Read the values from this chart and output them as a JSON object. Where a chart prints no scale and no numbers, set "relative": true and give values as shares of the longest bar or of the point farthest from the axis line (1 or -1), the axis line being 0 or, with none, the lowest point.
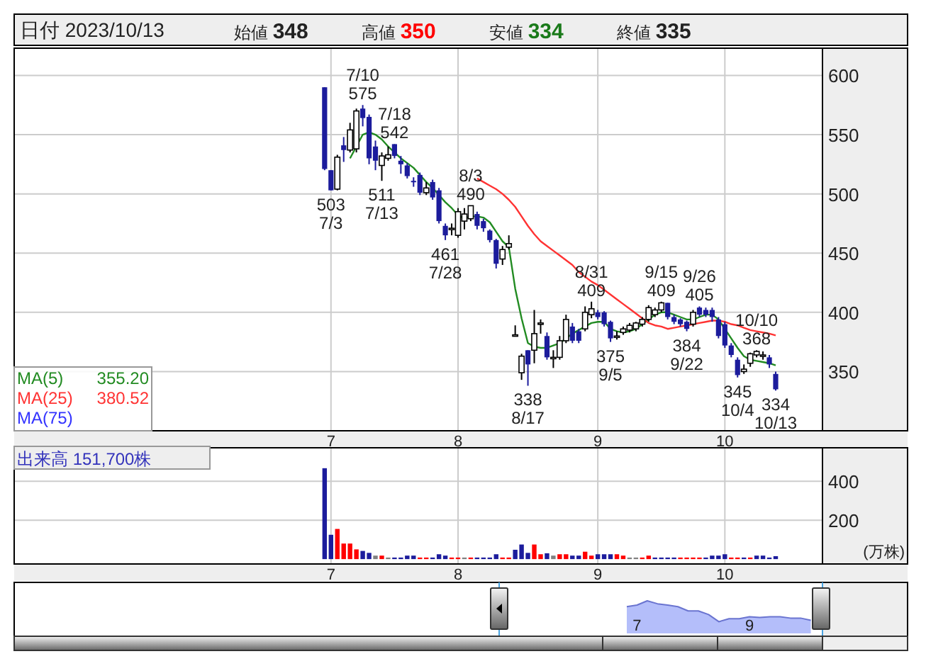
{
  "chart_data": [
    {
      "type": "candlestick",
      "annotations": [
        "日付 2023/10/13",
        "始値 348",
        "高値 350",
        "安値 334",
        "終値 335",
        "355.20",
        "380.52",
        {
          "text": "503\n7/3",
          "y": 503
        },
        {
          "text": "7/10\n575",
          "y": 575
        },
        {
          "text": "511\n7/13",
          "y": 511
        },
        {
          "text": "7/18\n542",
          "y": 542
        },
        {
          "text": "461\n7/28",
          "y": 461
        },
        {
          "text": "8/3\n490",
          "y": 490
        },
        {
          "text": "338\n8/17",
          "y": 338
        },
        {
          "text": "8/31\n409",
          "y": 409
        },
        {
          "text": "375\n9/5",
          "y": 375
        },
        {
          "text": "9/15\n409",
          "y": 409
        },
        {
          "text": "384\n9/22",
          "y": 384
        },
        {
          "text": "9/26\n405",
          "y": 405
        },
        {
          "text": "345\n10/4",
          "y": 345
        },
        {
          "text": "10/10\n368",
          "y": 368
        },
        {
          "text": "334\n10/13",
          "y": 334
        }
      ],
      "categories": [
        null,
        "7",
        null,
        null,
        null,
        null,
        null,
        null,
        null,
        null,
        null,
        null,
        null,
        null,
        null,
        null,
        null,
        null,
        null,
        null,
        null,
        "8",
        null,
        null,
        null,
        null,
        null,
        null,
        null,
        null,
        null,
        null,
        null,
        null,
        null,
        null,
        null,
        null,
        null,
        null,
        null,
        null,
        null,
        "9",
        null,
        null,
        null,
        null,
        null,
        null,
        null,
        null,
        null,
        null,
        null,
        null,
        null,
        null,
        null,
        null,
        null,
        null,
        null,
        "10",
        null,
        null,
        null,
        null,
        null,
        null,
        null,
        null
      ],
      "ohlc": [
        [
          590,
          590,
          520,
          521
        ],
        [
          520,
          520,
          503,
          503
        ],
        [
          504,
          533,
          503,
          531
        ],
        [
          541,
          548,
          527,
          537
        ],
        [
          537,
          560,
          535,
          554
        ],
        [
          538,
          572,
          535,
          570
        ],
        [
          572,
          575,
          557,
          564
        ],
        [
          565,
          567,
          525,
          530
        ],
        [
          540,
          545,
          520,
          528
        ],
        [
          524,
          535,
          511,
          532
        ],
        [
          530,
          540,
          528,
          533
        ],
        [
          542,
          542,
          530,
          532
        ],
        [
          528,
          532,
          517,
          525
        ],
        [
          524,
          526,
          513,
          515
        ],
        [
          511,
          514,
          506,
          510
        ],
        [
          516,
          518,
          499,
          501
        ],
        [
          501,
          510,
          499,
          505
        ],
        [
          510,
          512,
          495,
          497
        ],
        [
          503,
          505,
          475,
          477
        ],
        [
          473,
          475,
          461,
          465
        ],
        [
          471,
          475,
          465,
          471
        ],
        [
          465,
          488,
          463,
          485
        ],
        [
          477,
          488,
          470,
          483
        ],
        [
          479,
          490,
          477,
          490
        ],
        [
          483,
          485,
          470,
          473
        ],
        [
          477,
          479,
          468,
          471
        ],
        [
          469,
          470,
          459,
          461
        ],
        [
          461,
          462,
          437,
          441
        ],
        [
          445,
          456,
          440,
          453
        ],
        [
          455,
          465,
          453,
          458
        ],
        [
          381,
          389,
          381,
          381
        ],
        [
          349,
          365,
          343,
          363
        ],
        [
          368,
          368,
          338,
          356
        ],
        [
          368,
          402,
          357,
          382
        ],
        [
          391,
          394,
          382,
          391
        ],
        [
          380,
          383,
          360,
          362
        ],
        [
          362,
          368,
          353,
          362
        ],
        [
          362,
          380,
          360,
          376
        ],
        [
          376,
          398,
          374,
          394
        ],
        [
          388,
          391,
          374,
          376
        ],
        [
          384,
          386,
          374,
          376
        ],
        [
          386,
          405,
          384,
          400
        ],
        [
          398,
          409,
          395,
          403
        ],
        [
          400,
          402,
          394,
          396
        ],
        [
          400,
          401,
          388,
          390
        ],
        [
          392,
          393,
          375,
          378
        ],
        [
          380,
          384,
          377,
          380
        ],
        [
          383,
          388,
          381,
          386
        ],
        [
          385,
          391,
          383,
          389
        ],
        [
          386,
          392,
          384,
          391
        ],
        [
          390,
          396,
          388,
          394
        ],
        [
          394,
          406,
          392,
          404
        ],
        [
          398,
          404,
          396,
          402
        ],
        [
          402,
          409,
          400,
          408
        ],
        [
          408,
          408,
          394,
          396
        ],
        [
          396,
          398,
          390,
          392
        ],
        [
          394,
          395,
          388,
          390
        ],
        [
          392,
          393,
          384,
          386
        ],
        [
          390,
          402,
          388,
          400
        ],
        [
          404,
          405,
          396,
          398
        ],
        [
          402,
          404,
          396,
          398
        ],
        [
          402,
          404,
          392,
          396
        ],
        [
          394,
          396,
          378,
          380
        ],
        [
          390,
          392,
          370,
          372
        ],
        [
          372,
          374,
          362,
          364
        ],
        [
          360,
          362,
          345,
          347
        ],
        [
          350,
          356,
          348,
          352
        ],
        [
          357,
          366,
          354,
          365
        ],
        [
          364,
          368,
          362,
          367
        ],
        [
          364,
          367,
          360,
          364
        ],
        [
          362,
          364,
          353,
          356
        ],
        [
          348,
          350,
          334,
          335
        ]
      ],
      "series": [
        {
          "type": "line",
          "name": "MA(5)",
          "color": "#228b22",
          "values": [
            null,
            null,
            null,
            null,
            530,
            540,
            550,
            552,
            550,
            546,
            540,
            535,
            530,
            526,
            522,
            516,
            510,
            505,
            499,
            493,
            488,
            482,
            479,
            481,
            481,
            480,
            476,
            468,
            460,
            455,
            420,
            395,
            374,
            371,
            370,
            370,
            372,
            374,
            378,
            382,
            385,
            388,
            391,
            392,
            392,
            386,
            384,
            383,
            384,
            386,
            390,
            394,
            398,
            400,
            400,
            398,
            396,
            394,
            394,
            396,
            398,
            398,
            394,
            386,
            378,
            370,
            363,
            360,
            359,
            358,
            357,
            355.2
          ]
        },
        {
          "type": "line",
          "name": "MA(25)",
          "color": "#ff3333",
          "values": [
            null,
            null,
            null,
            null,
            null,
            null,
            null,
            null,
            null,
            null,
            null,
            null,
            null,
            null,
            null,
            null,
            null,
            null,
            null,
            null,
            null,
            null,
            null,
            null,
            513,
            510,
            507,
            504,
            500,
            495,
            489,
            481,
            473,
            466,
            460,
            456,
            452,
            448,
            444,
            440,
            434,
            430,
            426,
            423,
            419,
            415,
            411,
            407,
            403,
            399,
            395,
            391,
            389,
            388,
            386,
            387,
            388,
            389,
            390,
            391,
            392,
            393,
            393,
            392,
            390,
            389,
            387,
            385,
            384,
            383,
            382,
            380.52
          ]
        },
        {
          "type": "line",
          "name": "MA(75)",
          "color": "#3333ff",
          "values": [
            null,
            null,
            null,
            null,
            null,
            null,
            null,
            null,
            null,
            null,
            null,
            null,
            null,
            null,
            null,
            null,
            null,
            null,
            null,
            null,
            null,
            null,
            null,
            null,
            null,
            null,
            null,
            null,
            null,
            null,
            null,
            null,
            null,
            null,
            null,
            null,
            null,
            null,
            null,
            null,
            null,
            null,
            null,
            null,
            null,
            null,
            null,
            null,
            null,
            null,
            null,
            null,
            null,
            null,
            null,
            null,
            null,
            null,
            null,
            null,
            null,
            null,
            null,
            null,
            null,
            null,
            null,
            null,
            null,
            null,
            null,
            null
          ]
        }
      ],
      "ylim": [
        300,
        623
      ],
      "yticks": [
        350,
        400,
        450,
        500,
        550,
        600
      ],
      "grid": true,
      "legend": "bottom left"
    },
    {
      "type": "bar",
      "annotations": [
        "出来高 151,700株"
      ],
      "ylabel": "(万株)",
      "categories": [
        null,
        "7",
        null,
        null,
        null,
        null,
        null,
        null,
        null,
        null,
        null,
        null,
        null,
        null,
        null,
        null,
        null,
        null,
        null,
        null,
        null,
        "8",
        null,
        null,
        null,
        null,
        null,
        null,
        null,
        null,
        null,
        null,
        null,
        null,
        null,
        null,
        null,
        null,
        null,
        null,
        null,
        null,
        null,
        "9",
        null,
        null,
        null,
        null,
        null,
        null,
        null,
        null,
        null,
        null,
        null,
        null,
        null,
        null,
        null,
        null,
        null,
        null,
        null,
        "10",
        null,
        null,
        null,
        null,
        null,
        null,
        null,
        null
      ],
      "values": [
        467,
        125,
        155,
        80,
        80,
        50,
        42,
        32,
        18,
        18,
        8,
        8,
        8,
        18,
        18,
        8,
        8,
        8,
        25,
        18,
        8,
        8,
        8,
        8,
        8,
        8,
        8,
        25,
        8,
        8,
        48,
        75,
        32,
        75,
        25,
        30,
        18,
        25,
        25,
        18,
        18,
        38,
        18,
        25,
        25,
        25,
        25,
        18,
        8,
        8,
        8,
        18,
        8,
        8,
        8,
        8,
        8,
        8,
        8,
        8,
        8,
        18,
        18,
        25,
        8,
        8,
        8,
        8,
        18,
        18,
        8,
        15
      ],
      "colors": [
        "#1c1c9c",
        "#1c1c9c",
        "#ff0000",
        "#ff0000",
        "#ff0000",
        "#ff0000",
        "#1c1c9c",
        "#1c1c9c",
        "#808080",
        "#ff0000",
        "#808080",
        "#1c1c9c",
        "#1c1c9c",
        "#1c1c9c",
        "#1c1c9c",
        "#ff0000",
        "#ff0000",
        "#1c1c9c",
        "#1c1c9c",
        "#1c1c9c",
        "#ff0000",
        "#ff0000",
        "#808080",
        "#ff0000",
        "#1c1c9c",
        "#1c1c9c",
        "#1c1c9c",
        "#1c1c9c",
        "#ff0000",
        "#ff0000",
        "#1c1c9c",
        "#1c1c9c",
        "#1c1c9c",
        "#ff0000",
        "#ff0000",
        "#1c1c9c",
        "#808080",
        "#ff0000",
        "#ff0000",
        "#1c1c9c",
        "#1c1c9c",
        "#ff0000",
        "#ff0000",
        "#1c1c9c",
        "#1c1c9c",
        "#1c1c9c",
        "#ff0000",
        "#ff0000",
        "#808080",
        "#808080",
        "#ff0000",
        "#ff0000",
        "#1c1c9c",
        "#1c1c9c",
        "#1c1c9c",
        "#1c1c9c",
        "#ff0000",
        "#ff0000",
        "#ff0000",
        "#ff0000",
        "#1c1c9c",
        "#1c1c9c",
        "#1c1c9c",
        "#1c1c9c",
        "#ff0000",
        "#ff0000",
        "#1c1c9c",
        "#ff0000",
        "#1c1c9c",
        "#1c1c9c",
        "#1c1c9c",
        "#1c1c9c"
      ],
      "ylim": [
        -25,
        572
      ],
      "yticks": [
        200,
        400
      ],
      "grid": true
    },
    {
      "type": "area",
      "relative": true,
      "categories": [
        null,
        "7",
        null,
        null,
        null,
        null,
        null,
        null,
        null,
        null,
        null,
        null,
        "9",
        null,
        null,
        null,
        null,
        null,
        null,
        null
      ],
      "series": [
        {
          "color": "#b4befa",
          "values": [
            0.82,
            0.87,
            1,
            0.91,
            0.87,
            0.82,
            0.69,
            0.69,
            0.58,
            0.36,
            0.45,
            0.45,
            0.51,
            0.49,
            0.51,
            0.51,
            0.47,
            0.47,
            0.4,
            null
          ]
        }
      ]
    }
  ]
}
